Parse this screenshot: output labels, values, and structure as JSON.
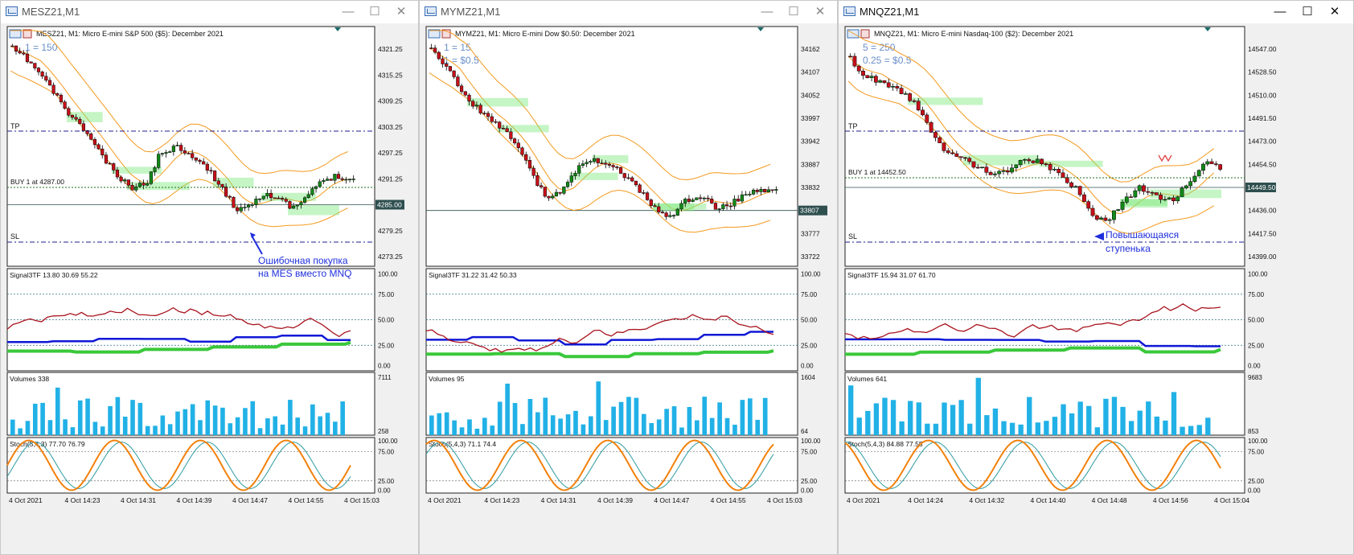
{
  "windows": [
    {
      "id": "w1",
      "title": "MESZ21,M1",
      "active": false,
      "symbol_line": "MESZ21, M1:  Micro E-mini S&P 500 ($5): December 2021",
      "overlay_lines": [
        "1 = 150"
      ],
      "price_labels": [
        "4321.25",
        "4315.25",
        "4309.25",
        "4303.25",
        "4297.25",
        "4291.25",
        "4285.00",
        "4279.25",
        "4273.25"
      ],
      "current_price": "4285.00",
      "tp_label": "TP",
      "sl_label": "SL",
      "buy_label": "BUY 1 at 4287.00",
      "annotation": [
        "Ошибочная покупка",
        "на MES вместо MNQ"
      ],
      "signal_header": "Signal3TF 13.80 30.69 55.22",
      "signal_levels": [
        "100.00",
        "75.00",
        "50.00",
        "25.00",
        "0.00"
      ],
      "volumes_header": "Volumes 338",
      "volumes_max": "7111",
      "volumes_min": "258",
      "stoch_header": "Stoch(5,4,3) 77.70 76.79",
      "stoch_levels": [
        "100.00",
        "75.00",
        "25.00",
        "0.00"
      ],
      "time_labels": [
        "4 Oct 2021",
        "4 Oct 14:23",
        "4 Oct 14:31",
        "4 Oct 14:39",
        "4 Oct 14:47",
        "4 Oct 14:55",
        "4 Oct 15:03"
      ]
    },
    {
      "id": "w2",
      "title": "MYMZ21,M1",
      "active": false,
      "symbol_line": "MYMZ21, M1:  Micro E-mini Dow $0.50: December 2021",
      "overlay_lines": [
        "1 = 15",
        "1 = $0.5"
      ],
      "price_labels": [
        "34162",
        "34107",
        "34052",
        "33997",
        "33942",
        "33887",
        "33832",
        "33807",
        "33777",
        "33722"
      ],
      "current_price": "33807",
      "tp_label": "",
      "sl_label": "",
      "buy_label": "",
      "annotation": [],
      "signal_header": "Signal3TF 31.22 31.42 50.33",
      "signal_levels": [
        "100.00",
        "75.00",
        "50.00",
        "25.00",
        "0.00"
      ],
      "volumes_header": "Volumes 95",
      "volumes_max": "1604",
      "volumes_min": "64",
      "stoch_header": "Stoch(5,4,3) 71.1 74.4",
      "stoch_levels": [
        "100.00",
        "75.00",
        "25.00",
        "0.00"
      ],
      "time_labels": [
        "4 Oct 2021",
        "4 Oct 14:23",
        "4 Oct 14:31",
        "4 Oct 14:39",
        "4 Oct 14:47",
        "4 Oct 14:55",
        "4 Oct 15:03"
      ]
    },
    {
      "id": "w3",
      "title": "MNQZ21,M1",
      "active": true,
      "symbol_line": "MNQZ21, M1:  Micro E-mini Nasdaq-100 ($2): December 2021",
      "overlay_lines": [
        "5 = 250",
        "0.25 = $0.5"
      ],
      "price_labels": [
        "14547.00",
        "14528.50",
        "14510.00",
        "14491.50",
        "14473.00",
        "14454.50",
        "14449.50",
        "14436.00",
        "14417.50",
        "14399.00"
      ],
      "current_price": "14449.50",
      "tp_label": "TP",
      "sl_label": "SL",
      "buy_label": "BUY 1 at 14452.50",
      "annotation": [
        "Повышающаяся",
        "ступенька"
      ],
      "signal_header": "Signal3TF 15.94 31.07 61.70",
      "signal_levels": [
        "100.00",
        "75.00",
        "50.00",
        "25.00",
        "0.00"
      ],
      "volumes_header": "Volumes 641",
      "volumes_max": "9683",
      "volumes_min": "853",
      "stoch_header": "Stoch(5,4,3) 84.88 77.55",
      "stoch_levels": [
        "100.00",
        "75.00",
        "25.00",
        "0.00"
      ],
      "time_labels": [
        "4 Oct 2021",
        "4 Oct 14:24",
        "4 Oct 14:32",
        "4 Oct 14:40",
        "4 Oct 14:48",
        "4 Oct 14:56",
        "4 Oct 15:04"
      ]
    }
  ],
  "window_buttons": {
    "minimize": "—",
    "maximize": "☐",
    "close": "✕"
  },
  "colors": {
    "bull": "#138a18",
    "bear": "#c8101a",
    "ma": "#f39a1f",
    "zone": "#7ee87e",
    "tp_sl_line": "#1e1e8c",
    "annotation_blue": "#1f2fdc",
    "signal_red": "#a8141e",
    "signal_blue": "#1018d6",
    "signal_green": "#3ac83a",
    "volume": "#21b1e6",
    "stoch_orange": "#f2810c",
    "stoch_teal": "#2c9aa0"
  }
}
